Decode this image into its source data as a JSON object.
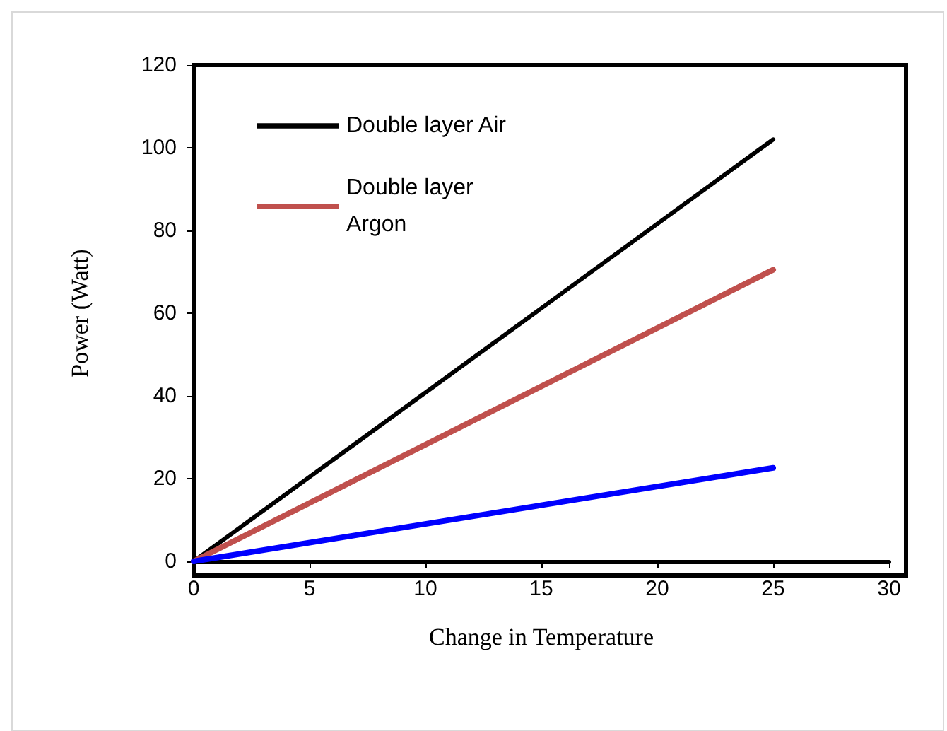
{
  "chart_data": {
    "type": "line",
    "xlabel": "Change in Temperature",
    "ylabel": "Power (Watt)",
    "xlim": [
      0,
      30
    ],
    "xticks": [
      0,
      5,
      10,
      15,
      20,
      25,
      30
    ],
    "ylim": [
      0,
      120
    ],
    "yticks": [
      0,
      20,
      40,
      60,
      80,
      100,
      120
    ],
    "x": [
      0,
      25
    ],
    "series": [
      {
        "name": "Double layer Air",
        "color": "#000000",
        "values": [
          0,
          102
        ]
      },
      {
        "name": "Double layer Argon",
        "color": "#c0504d",
        "values": [
          0,
          70.5
        ]
      },
      {
        "color": "#0000ff",
        "values": [
          0,
          22.6
        ]
      }
    ],
    "grid": false,
    "legend": "top left",
    "marker": "none",
    "line_style": "solid"
  }
}
